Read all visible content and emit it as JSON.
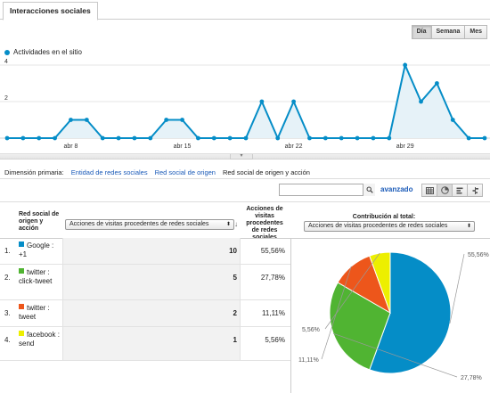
{
  "tab": {
    "label": "Interacciones sociales"
  },
  "granularity": {
    "options": [
      "Día",
      "Semana",
      "Mes"
    ],
    "active": "Día"
  },
  "colors": {
    "line": "#058dc7",
    "fill": "#e6f2f8",
    "google": "#058dc7",
    "twitter_click": "#50b432",
    "twitter_tweet": "#ed561b",
    "facebook": "#edef00"
  },
  "line_chart": {
    "legend": "Actividades en el sitio",
    "y_ticks": [
      "4",
      "2"
    ],
    "x_labels": [
      "abr 8",
      "abr 15",
      "abr 22",
      "abr 29"
    ]
  },
  "chart_data": [
    {
      "type": "area",
      "series": [
        {
          "name": "Actividades en el sitio",
          "values": [
            0,
            0,
            0,
            0,
            1,
            1,
            0,
            0,
            0,
            0,
            1,
            1,
            0,
            0,
            0,
            0,
            2,
            0,
            2,
            0,
            0,
            0,
            0,
            0,
            0,
            4,
            2,
            3,
            1,
            0,
            0
          ]
        }
      ],
      "x": [
        "abr 4",
        "abr 5",
        "abr 6",
        "abr 7",
        "abr 8",
        "abr 9",
        "abr 10",
        "abr 11",
        "abr 12",
        "abr 13",
        "abr 14",
        "abr 15",
        "abr 16",
        "abr 17",
        "abr 18",
        "abr 19",
        "abr 20",
        "abr 21",
        "abr 22",
        "abr 23",
        "abr 24",
        "abr 25",
        "abr 26",
        "abr 27",
        "abr 28",
        "abr 29",
        "abr 30",
        "may 1",
        "may 2",
        "may 3",
        "may 4"
      ],
      "ylim": [
        0,
        4
      ],
      "y_ticks": [
        2,
        4
      ],
      "grid": true
    },
    {
      "type": "pie",
      "title": "Contribución al total:",
      "categories": [
        "Google : +1",
        "twitter : click-tweet",
        "twitter : tweet",
        "facebook : send"
      ],
      "values": [
        55.56,
        27.78,
        11.11,
        5.56
      ],
      "labels": [
        "55,56%",
        "27,78%",
        "11,11%",
        "5,56%"
      ]
    }
  ],
  "dimension": {
    "label": "Dimensión primaria:",
    "options": [
      "Entidad de redes sociales",
      "Red social de origen",
      "Red social de origen y acción"
    ],
    "active": "Red social de origen y acción"
  },
  "toolbar": {
    "search_value": "",
    "advanced": "avanzado"
  },
  "table": {
    "dim_header": "Red social de origen y acción",
    "metric_select": "Acciones de visitas procedentes de redes sociales",
    "metric_header": "Acciones de visitas procedentes de redes sociales",
    "contrib_title": "Contribución al total:",
    "contrib_select": "Acciones de visitas procedentes de redes sociales",
    "rows": [
      {
        "num": "1.",
        "name": "Google : +1",
        "value": "10",
        "pct": "55,56%",
        "color": "#058dc7"
      },
      {
        "num": "2.",
        "name": "twitter : click-tweet",
        "value": "5",
        "pct": "27,78%",
        "color": "#50b432"
      },
      {
        "num": "3.",
        "name": "twitter : tweet",
        "value": "2",
        "pct": "11,11%",
        "color": "#ed561b"
      },
      {
        "num": "4.",
        "name": "facebook : send",
        "value": "1",
        "pct": "5,56%",
        "color": "#edef00"
      }
    ]
  }
}
